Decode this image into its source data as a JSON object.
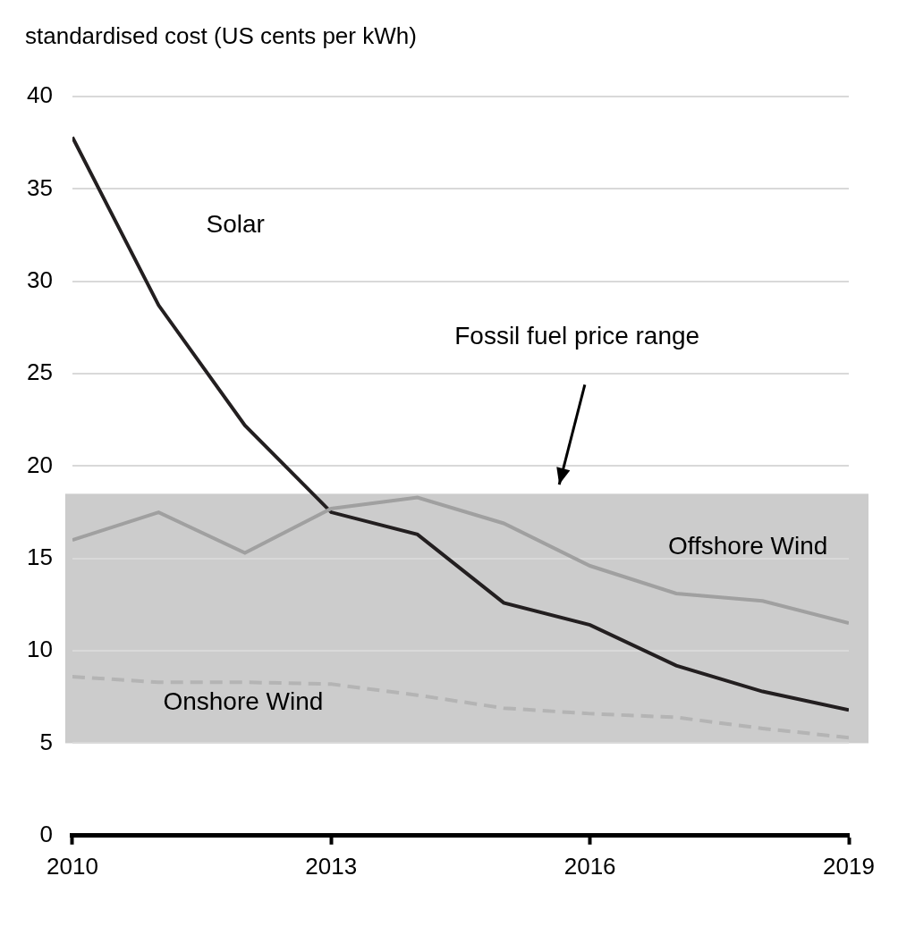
{
  "chart_data": {
    "type": "line",
    "y_label": "standardised cost (US cents per kWh)",
    "x": [
      2010,
      2011,
      2012,
      2013,
      2014,
      2015,
      2016,
      2017,
      2018,
      2019
    ],
    "series": [
      {
        "name": "Solar",
        "color": "#231f20",
        "line_style": "solid",
        "values": [
          37.8,
          28.7,
          22.2,
          17.5,
          16.3,
          12.6,
          11.4,
          9.2,
          7.8,
          6.8
        ]
      },
      {
        "name": "Offshore Wind",
        "color": "#a0a0a0",
        "line_style": "solid",
        "values": [
          16.0,
          17.5,
          15.3,
          17.7,
          18.3,
          16.9,
          14.6,
          13.1,
          12.7,
          11.5
        ]
      },
      {
        "name": "Onshore Wind",
        "color": "#b4b4b4",
        "line_style": "dashed",
        "values": [
          8.6,
          8.3,
          8.3,
          8.2,
          7.6,
          6.9,
          6.6,
          6.4,
          5.8,
          5.3
        ]
      }
    ],
    "band": {
      "label": "Fossil fuel price range",
      "range": [
        5,
        18.5
      ],
      "color": "#cccccc"
    },
    "xlim": [
      2010,
      2019
    ],
    "xticks": [
      2010,
      2013,
      2016,
      2019
    ],
    "ylim": [
      0,
      40
    ],
    "yticks": [
      0,
      5,
      10,
      15,
      20,
      25,
      30,
      35,
      40
    ],
    "grid": true,
    "legend": null
  }
}
